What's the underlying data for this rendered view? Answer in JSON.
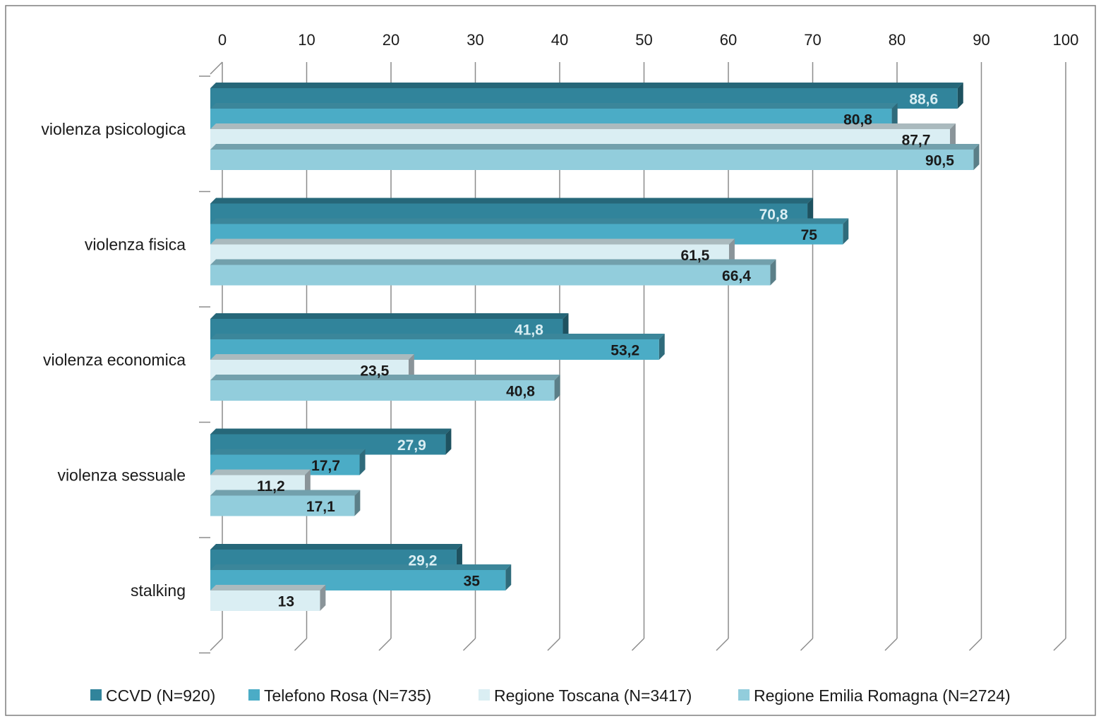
{
  "chart_data": {
    "type": "bar",
    "orientation": "horizontal",
    "style": "3d-clustered",
    "title": "",
    "xlabel": "",
    "ylabel": "",
    "xlim": [
      0,
      100
    ],
    "ticks": [
      "0",
      "10",
      "20",
      "30",
      "40",
      "50",
      "60",
      "70",
      "80",
      "90",
      "100"
    ],
    "grid": true,
    "legend_position": "bottom",
    "categories": [
      "violenza psicologica",
      "violenza fisica",
      "violenza economica",
      "violenza sessuale",
      "stalking"
    ],
    "series": [
      {
        "name": "CCVD (N=920)",
        "color": "#31849B",
        "label_color": "#DAEEF3",
        "values": [
          88.6,
          70.8,
          41.8,
          27.9,
          29.2
        ],
        "labels": [
          "88,6",
          "70,8",
          "41,8",
          "27,9",
          "29,2"
        ]
      },
      {
        "name": "Telefono Rosa (N=735)",
        "color": "#4BACC6",
        "label_color": "#1a1a1a",
        "values": [
          80.8,
          75,
          53.2,
          17.7,
          35
        ],
        "labels": [
          "80,8",
          "75",
          "53,2",
          "17,7",
          "35"
        ]
      },
      {
        "name": "Regione Toscana (N=3417)",
        "color": "#DAEEF3",
        "label_color": "#1a1a1a",
        "values": [
          87.7,
          61.5,
          23.5,
          11.2,
          13
        ],
        "labels": [
          "87,7",
          "61,5",
          "23,5",
          "11,2",
          "13"
        ]
      },
      {
        "name": "Regione Emilia Romagna (N=2724)",
        "color": "#92CDDC",
        "label_color": "#1a1a1a",
        "values": [
          90.5,
          66.4,
          40.8,
          17.1,
          null
        ],
        "labels": [
          "90,5",
          "66,4",
          "40,8",
          "17,1",
          ""
        ]
      }
    ]
  }
}
